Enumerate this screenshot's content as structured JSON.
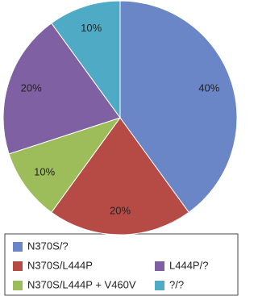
{
  "chart_data": {
    "type": "pie",
    "categories": [
      "N370S/?",
      "N370S/L444P",
      "N370S/L444P + V460V",
      "L444P/?",
      "?/?"
    ],
    "values": [
      40,
      20,
      10,
      20,
      10
    ],
    "value_labels": [
      "40%",
      "20%",
      "10%",
      "20%",
      "10%"
    ],
    "colors": [
      "#6b86c6",
      "#b64b46",
      "#9cbd5a",
      "#7f60a2",
      "#4faac6"
    ]
  }
}
